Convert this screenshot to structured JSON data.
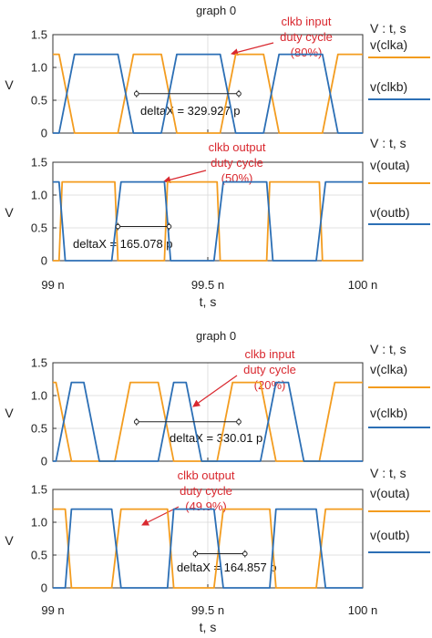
{
  "colors": {
    "series_a": "#F39C1F",
    "series_b": "#2C6FB5",
    "annotation": "#D9282F",
    "grid": "#D8D8D8"
  },
  "chart_data": [
    {
      "type": "line",
      "title": "graph 0",
      "xlabel": "t, s",
      "x_ticks": [
        "99 n",
        "99.5 n",
        "100 n"
      ],
      "xlim": [
        99,
        100
      ],
      "x_unit": "ns",
      "panels": [
        {
          "ylabel": "V",
          "ylim": [
            0,
            1.5
          ],
          "y_ticks": [
            "0",
            "0.5",
            "1.0",
            "1.5"
          ],
          "legend_header": "V : t, s",
          "series": [
            {
              "name": "v(clka)",
              "color_key": "series_a",
              "x": [
                99,
                99.02,
                99.07,
                99.21,
                99.26,
                99.35,
                99.4,
                99.54,
                99.59,
                99.68,
                99.73,
                99.87,
                99.92,
                100.0
              ],
              "y": [
                1.2,
                1.2,
                0,
                0,
                1.2,
                1.2,
                0,
                0,
                1.2,
                1.2,
                0,
                0,
                1.2,
                1.2
              ]
            },
            {
              "name": "v(clkb)",
              "color_key": "series_b",
              "x": [
                99,
                99.02,
                99.07,
                99.21,
                99.26,
                99.35,
                99.4,
                99.54,
                99.59,
                99.68,
                99.73,
                99.87,
                99.92,
                100.0
              ],
              "y": [
                0,
                0,
                1.2,
                1.2,
                0,
                0,
                1.2,
                1.2,
                0,
                0,
                1.2,
                1.2,
                0,
                0
              ]
            }
          ],
          "annotation": {
            "lines": [
              "clkb input",
              "duty cycle",
              "(80%)"
            ]
          },
          "measurement": {
            "label": "deltaX = 329.927 p",
            "x_start": 99.27,
            "x_end": 99.6,
            "y": 0.6
          }
        },
        {
          "ylabel": "V",
          "ylim": [
            0,
            1.5
          ],
          "y_ticks": [
            "0",
            "0.5",
            "1.0",
            "1.5"
          ],
          "legend_header": "V : t, s",
          "series": [
            {
              "name": "v(outa)",
              "color_key": "series_a",
              "x": [
                99,
                99.02,
                99.03,
                99.2,
                99.21,
                99.36,
                99.37,
                99.53,
                99.54,
                99.69,
                99.7,
                99.86,
                99.87,
                100.0
              ],
              "y": [
                0,
                0,
                1.2,
                1.2,
                0,
                0,
                1.2,
                1.2,
                0,
                0,
                1.2,
                1.2,
                0,
                0
              ]
            },
            {
              "name": "v(outb)",
              "color_key": "series_b",
              "x": [
                99,
                99.02,
                99.04,
                99.19,
                99.22,
                99.36,
                99.38,
                99.52,
                99.55,
                99.69,
                99.71,
                99.85,
                99.88,
                100.0
              ],
              "y": [
                1.2,
                1.2,
                0,
                0,
                1.2,
                1.2,
                0,
                0,
                1.2,
                1.2,
                0,
                0,
                1.2,
                1.2
              ]
            }
          ],
          "annotation": {
            "lines": [
              "clkb output",
              "duty cycle",
              "(50%)"
            ]
          },
          "measurement": {
            "label": "deltaX = 165.078 p",
            "x_start": 99.21,
            "x_end": 99.375,
            "y": 0.52
          }
        }
      ]
    },
    {
      "type": "line",
      "title": "graph 0",
      "xlabel": "t, s",
      "x_ticks": [
        "99 n",
        "99.5 n",
        "100 n"
      ],
      "xlim": [
        99,
        100
      ],
      "x_unit": "ns",
      "panels": [
        {
          "ylabel": "V",
          "ylim": [
            0,
            1.5
          ],
          "y_ticks": [
            "0",
            "0.5",
            "1.0",
            "1.5"
          ],
          "legend_header": "V : t, s",
          "series": [
            {
              "name": "v(clka)",
              "color_key": "series_a",
              "x": [
                99,
                99.01,
                99.06,
                99.2,
                99.25,
                99.34,
                99.39,
                99.53,
                99.58,
                99.67,
                99.72,
                99.86,
                99.91,
                100.0
              ],
              "y": [
                1.2,
                1.2,
                0,
                0,
                1.2,
                1.2,
                0,
                0,
                1.2,
                1.2,
                0,
                0,
                1.2,
                1.2
              ]
            },
            {
              "name": "v(clkb)",
              "color_key": "series_b",
              "x": [
                99,
                99.01,
                99.06,
                99.1,
                99.15,
                99.34,
                99.39,
                99.43,
                99.48,
                99.67,
                99.72,
                99.76,
                99.81,
                100.0
              ],
              "y": [
                0,
                0,
                1.2,
                1.2,
                0,
                0,
                1.2,
                1.2,
                0,
                0,
                1.2,
                1.2,
                0,
                0
              ]
            }
          ],
          "annotation": {
            "lines": [
              "clkb input",
              "duty cycle",
              "(20%)"
            ]
          },
          "measurement": {
            "label": "deltaX = 330.01 p",
            "x_start": 99.27,
            "x_end": 99.6,
            "y": 0.6
          }
        },
        {
          "ylabel": "V",
          "ylim": [
            0,
            1.5
          ],
          "y_ticks": [
            "0",
            "0.5",
            "1.0",
            "1.5"
          ],
          "legend_header": "V : t, s",
          "series": [
            {
              "name": "v(outa)",
              "color_key": "series_a",
              "x": [
                99,
                99.04,
                99.06,
                99.19,
                99.22,
                99.37,
                99.39,
                99.52,
                99.55,
                99.7,
                99.72,
                99.85,
                99.88,
                100.0
              ],
              "y": [
                1.2,
                1.2,
                0,
                0,
                1.2,
                1.2,
                0,
                0,
                1.2,
                1.2,
                0,
                0,
                1.2,
                1.2
              ]
            },
            {
              "name": "v(outb)",
              "color_key": "series_b",
              "x": [
                99,
                99.04,
                99.06,
                99.19,
                99.22,
                99.37,
                99.39,
                99.52,
                99.55,
                99.7,
                99.72,
                99.85,
                99.88,
                100.0
              ],
              "y": [
                0,
                0,
                1.2,
                1.2,
                0,
                0,
                1.2,
                1.2,
                0,
                0,
                1.2,
                1.2,
                0,
                0
              ]
            }
          ],
          "annotation": {
            "lines": [
              "clkb output",
              "duty cycle",
              "(49.9%)"
            ]
          },
          "measurement": {
            "label": "deltaX = 164.857 p",
            "x_start": 99.46,
            "x_end": 99.62,
            "y": 0.52
          }
        }
      ]
    }
  ]
}
